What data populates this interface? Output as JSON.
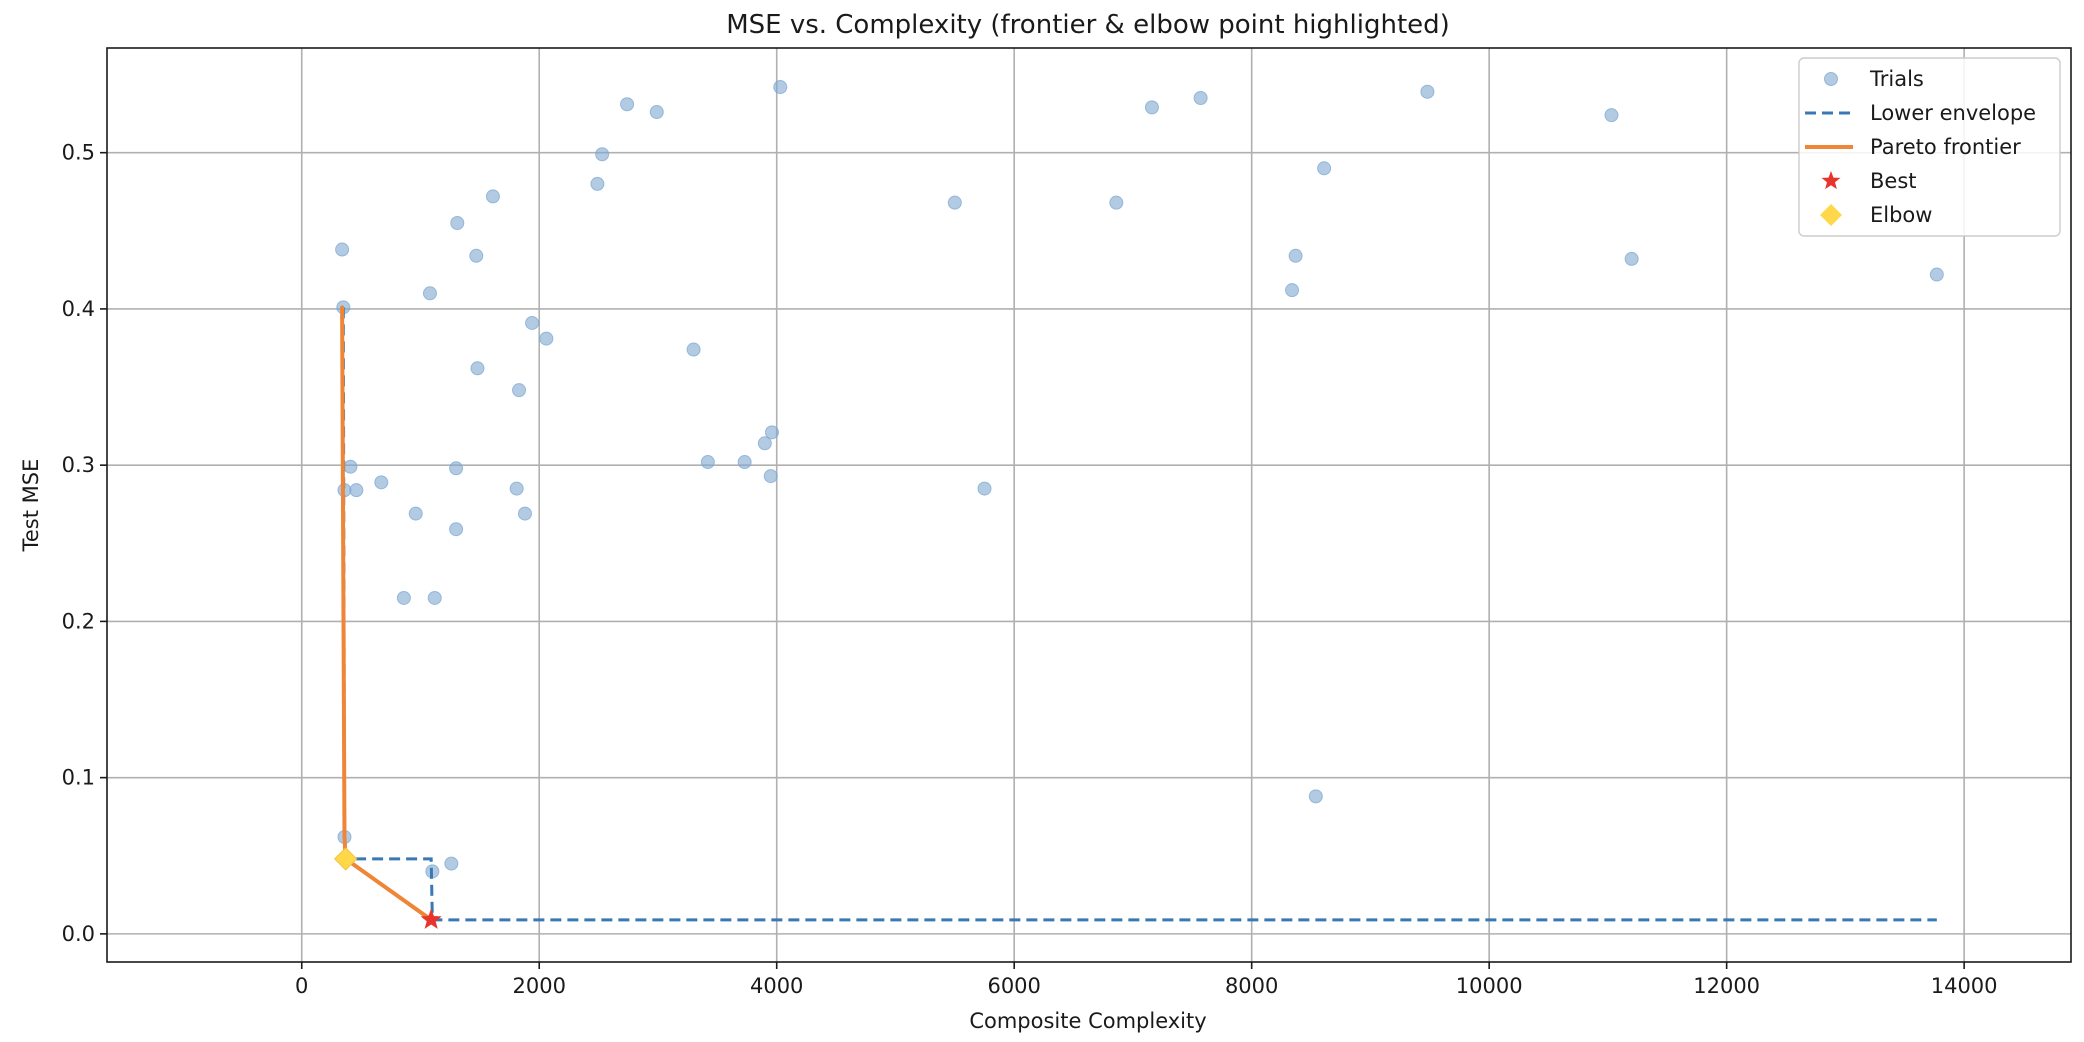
{
  "chart_data": {
    "type": "scatter",
    "title": "MSE vs. Complexity (frontier & elbow point highlighted)",
    "xlabel": "Composite Complexity",
    "ylabel": "Test MSE",
    "xlim": [
      -1640,
      14900
    ],
    "ylim": [
      -0.018,
      0.567
    ],
    "xticks": [
      0,
      2000,
      4000,
      6000,
      8000,
      10000,
      12000,
      14000
    ],
    "xtick_labels": [
      "0",
      "2000",
      "4000",
      "6000",
      "8000",
      "10000",
      "12000",
      "14000"
    ],
    "yticks": [
      0.0,
      0.1,
      0.2,
      0.3,
      0.4,
      0.5
    ],
    "ytick_labels": [
      "0.0",
      "0.1",
      "0.2",
      "0.3",
      "0.4",
      "0.5"
    ],
    "grid": true,
    "legend_position": "top-right",
    "colors": {
      "trials": "#7ea8d1",
      "lower_envelope": "#3a78b4",
      "pareto": "#ef8536",
      "best": "#e8352c",
      "elbow": "#ffd84a"
    },
    "series": [
      {
        "name": "Trials",
        "kind": "scatter",
        "points": [
          [
            340,
            0.438
          ],
          [
            350,
            0.401
          ],
          [
            360,
            0.284
          ],
          [
            360,
            0.062
          ],
          [
            410,
            0.299
          ],
          [
            460,
            0.284
          ],
          [
            670,
            0.289
          ],
          [
            860,
            0.215
          ],
          [
            960,
            0.269
          ],
          [
            1080,
            0.41
          ],
          [
            1100,
            0.04
          ],
          [
            1120,
            0.215
          ],
          [
            1260,
            0.045
          ],
          [
            1300,
            0.298
          ],
          [
            1300,
            0.259
          ],
          [
            1310,
            0.455
          ],
          [
            1470,
            0.434
          ],
          [
            1480,
            0.362
          ],
          [
            1610,
            0.472
          ],
          [
            1810,
            0.285
          ],
          [
            1830,
            0.348
          ],
          [
            1880,
            0.269
          ],
          [
            1940,
            0.391
          ],
          [
            2060,
            0.381
          ],
          [
            2490,
            0.48
          ],
          [
            2530,
            0.499
          ],
          [
            2740,
            0.531
          ],
          [
            2990,
            0.526
          ],
          [
            3300,
            0.374
          ],
          [
            3420,
            0.302
          ],
          [
            3730,
            0.302
          ],
          [
            3900,
            0.314
          ],
          [
            3950,
            0.293
          ],
          [
            3960,
            0.321
          ],
          [
            4030,
            0.542
          ],
          [
            5500,
            0.468
          ],
          [
            5750,
            0.285
          ],
          [
            6860,
            0.468
          ],
          [
            7160,
            0.529
          ],
          [
            7570,
            0.535
          ],
          [
            8340,
            0.412
          ],
          [
            8370,
            0.434
          ],
          [
            8540,
            0.088
          ],
          [
            8610,
            0.49
          ],
          [
            9480,
            0.539
          ],
          [
            11030,
            0.524
          ],
          [
            11200,
            0.432
          ],
          [
            13770,
            0.422
          ]
        ]
      },
      {
        "name": "Lower envelope",
        "kind": "step-line",
        "points": [
          [
            350,
            0.401
          ],
          [
            360,
            0.062
          ],
          [
            370,
            0.048
          ],
          [
            1090,
            0.048
          ],
          [
            1100,
            0.009
          ],
          [
            13770,
            0.009
          ]
        ]
      },
      {
        "name": "Pareto frontier",
        "kind": "line",
        "points": [
          [
            340,
            0.401
          ],
          [
            360,
            0.062
          ],
          [
            370,
            0.048
          ],
          [
            1090,
            0.009
          ]
        ]
      },
      {
        "name": "Best",
        "kind": "marker-star",
        "points": [
          [
            1090,
            0.009
          ]
        ]
      },
      {
        "name": "Elbow",
        "kind": "marker-diamond",
        "points": [
          [
            370,
            0.048
          ]
        ]
      }
    ],
    "legend": [
      "Trials",
      "Lower envelope",
      "Pareto frontier",
      "Best",
      "Elbow"
    ]
  }
}
